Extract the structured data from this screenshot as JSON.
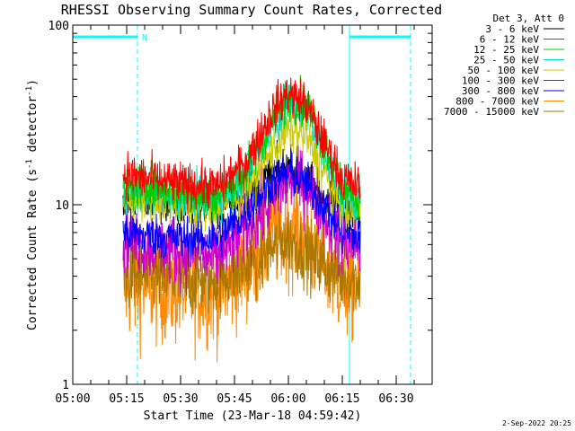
{
  "chart_data": {
    "type": "line",
    "title": "RHESSI Observing Summary Count Rates, Corrected",
    "ylabel": "Corrected Count Rate (s⁻¹ detector⁻¹)",
    "ylabel_parts": {
      "main": "Corrected Count Rate (s",
      "exp1": "-1",
      "mid": " detector",
      "exp2": "-1",
      "end": ")"
    },
    "xlabel": "Start Time (23-Mar-18 04:59:42)",
    "date_stamp": "2-Sep-2022 20:25",
    "y_scale": "log",
    "ylim": [
      1,
      100
    ],
    "xlim_minutes": [
      0,
      100
    ],
    "xticks": [
      {
        "t": 0,
        "label": "05:00"
      },
      {
        "t": 15,
        "label": "05:15"
      },
      {
        "t": 30,
        "label": "05:30"
      },
      {
        "t": 45,
        "label": "05:45"
      },
      {
        "t": 60,
        "label": "06:00"
      },
      {
        "t": 75,
        "label": "06:15"
      },
      {
        "t": 90,
        "label": "06:30"
      }
    ],
    "yticks": [
      {
        "v": 1,
        "label": "1"
      },
      {
        "v": 10,
        "label": "10"
      },
      {
        "v": 100,
        "label": "100"
      }
    ],
    "legend_header": "Det 3, Att 0",
    "night_marker_label": "N",
    "markers": {
      "solid_x": [
        0,
        77
      ],
      "dashed_x": [
        18,
        94
      ],
      "night_bars": [
        [
          0,
          18
        ],
        [
          77,
          94
        ]
      ]
    },
    "series": [
      {
        "name": "3 - 6 keV",
        "color": "#000000",
        "points": [
          [
            14,
            10.5
          ],
          [
            20,
            10.8
          ],
          [
            30,
            9.8
          ],
          [
            40,
            9.6
          ],
          [
            50,
            12
          ],
          [
            55,
            14.5
          ],
          [
            60,
            16
          ],
          [
            65,
            14
          ],
          [
            70,
            11
          ],
          [
            75,
            9.5
          ],
          [
            80,
            9.5
          ]
        ]
      },
      {
        "name": "6 - 12 keV",
        "color": "#cc00cc",
        "points": [
          [
            14,
            6.5
          ],
          [
            20,
            6
          ],
          [
            30,
            5.5
          ],
          [
            40,
            5
          ],
          [
            50,
            8
          ],
          [
            55,
            10
          ],
          [
            60,
            14
          ],
          [
            65,
            13
          ],
          [
            70,
            9
          ],
          [
            75,
            6
          ],
          [
            80,
            6
          ]
        ]
      },
      {
        "name": "12 - 25 keV",
        "color": "#00cc00",
        "points": [
          [
            14,
            12
          ],
          [
            20,
            13
          ],
          [
            30,
            12
          ],
          [
            40,
            11
          ],
          [
            48,
            15
          ],
          [
            55,
            28
          ],
          [
            60,
            40
          ],
          [
            65,
            36
          ],
          [
            70,
            22
          ],
          [
            75,
            12
          ],
          [
            80,
            11
          ]
        ]
      },
      {
        "name": "25 - 50 keV",
        "color": "#00e0c0",
        "points": [
          [
            14,
            12
          ],
          [
            20,
            12
          ],
          [
            30,
            11.5
          ],
          [
            40,
            11
          ],
          [
            48,
            15
          ],
          [
            55,
            26
          ],
          [
            60,
            36
          ],
          [
            65,
            33
          ],
          [
            70,
            20
          ],
          [
            75,
            11.5
          ],
          [
            80,
            10.5
          ]
        ]
      },
      {
        "name": "50 - 100 keV",
        "color": "#cccc00",
        "points": [
          [
            14,
            10
          ],
          [
            20,
            11
          ],
          [
            30,
            10
          ],
          [
            40,
            9.5
          ],
          [
            48,
            12
          ],
          [
            55,
            19
          ],
          [
            60,
            26
          ],
          [
            65,
            24
          ],
          [
            70,
            15
          ],
          [
            75,
            9.5
          ],
          [
            80,
            9
          ]
        ]
      },
      {
        "name": "100 - 300 keV",
        "color": "#ff0000",
        "points": [
          [
            14,
            15
          ],
          [
            20,
            14
          ],
          [
            30,
            13
          ],
          [
            40,
            12.5
          ],
          [
            48,
            17
          ],
          [
            55,
            32
          ],
          [
            60,
            42
          ],
          [
            65,
            36
          ],
          [
            70,
            22
          ],
          [
            75,
            14
          ],
          [
            80,
            12.5
          ]
        ]
      },
      {
        "name": "300 - 800 keV",
        "color": "#0000ff",
        "points": [
          [
            14,
            7
          ],
          [
            20,
            6.8
          ],
          [
            30,
            6.5
          ],
          [
            40,
            6.5
          ],
          [
            48,
            9
          ],
          [
            55,
            13
          ],
          [
            60,
            15
          ],
          [
            65,
            13
          ],
          [
            70,
            10
          ],
          [
            75,
            7
          ],
          [
            80,
            6.5
          ]
        ]
      },
      {
        "name": "800 - 7000 keV",
        "color": "#ff8800",
        "points": [
          [
            14,
            3.5
          ],
          [
            20,
            3.5
          ],
          [
            30,
            3.3
          ],
          [
            40,
            3.3
          ],
          [
            48,
            4.5
          ],
          [
            55,
            6.5
          ],
          [
            60,
            7.5
          ],
          [
            65,
            6.5
          ],
          [
            70,
            4.8
          ],
          [
            75,
            3.6
          ],
          [
            80,
            3.4
          ]
        ]
      },
      {
        "name": "7000 - 15000 keV",
        "color": "#aa7700",
        "points": [
          [
            14,
            4
          ],
          [
            20,
            4
          ],
          [
            30,
            3.8
          ],
          [
            40,
            3.8
          ],
          [
            48,
            4.5
          ],
          [
            55,
            5.5
          ],
          [
            60,
            6.5
          ],
          [
            65,
            5.5
          ],
          [
            70,
            4.5
          ],
          [
            75,
            4
          ],
          [
            80,
            3.8
          ]
        ]
      }
    ]
  }
}
